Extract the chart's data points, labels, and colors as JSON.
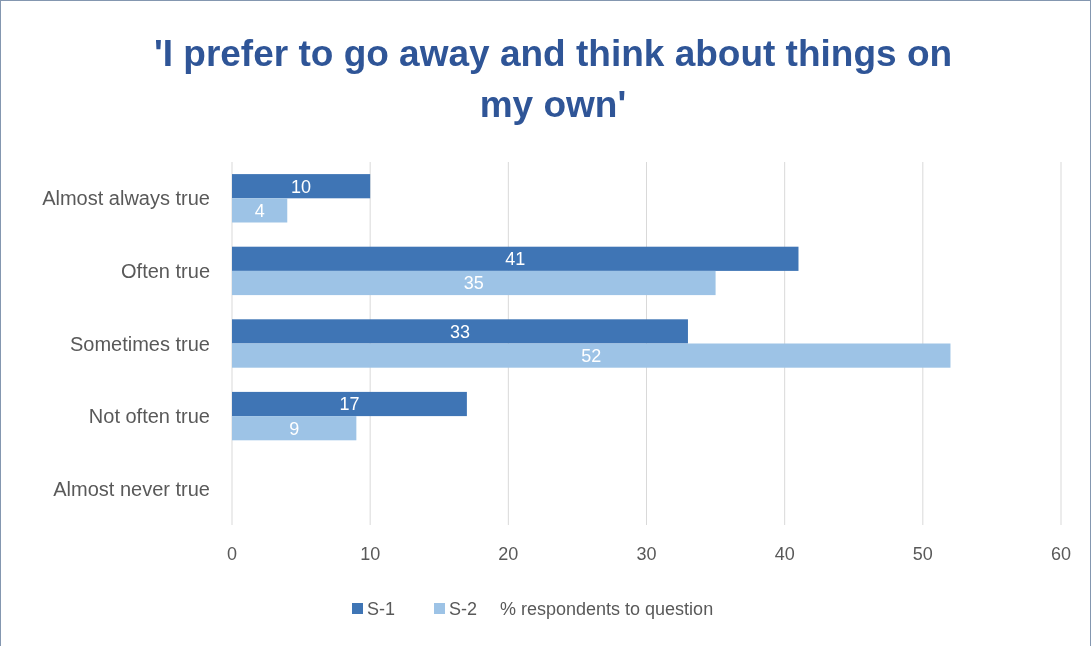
{
  "chart_data": {
    "type": "bar",
    "orientation": "horizontal",
    "title": "'I prefer to go away and think about things on my own'",
    "categories": [
      "Almost always true",
      "Often true",
      "Sometimes true",
      "Not often true",
      "Almost never true"
    ],
    "series": [
      {
        "name": "S-1",
        "color": "#3f75b5",
        "values": [
          10,
          41,
          33,
          17,
          null
        ]
      },
      {
        "name": "S-2",
        "color": "#9dc3e6",
        "values": [
          4,
          35,
          52,
          9,
          null
        ]
      }
    ],
    "xlim": [
      0,
      60
    ],
    "xticks": [
      0,
      10,
      20,
      30,
      40,
      50,
      60
    ],
    "grid": "x",
    "legend": "bottom",
    "data_labels": true,
    "annotations": [
      "% respondents to question"
    ]
  }
}
